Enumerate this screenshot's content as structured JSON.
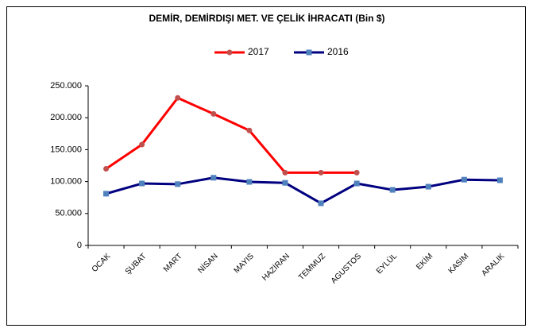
{
  "chart_data": {
    "type": "line",
    "title": "DEMİR, DEMİRDIŞI MET. VE ÇELİK İHRACATI (Bin $)",
    "categories": [
      "OCAK",
      "ŞUBAT",
      "MART",
      "NİSAN",
      "MAYIS",
      "HAZİRAN",
      "TEMMUZ",
      "AGUSTOS",
      "EYLÜL",
      "EKİM",
      "KASIM",
      "ARALIK"
    ],
    "series": [
      {
        "name": "2017",
        "color": "#ff0000",
        "marker_color": "#c0504d",
        "marker": "circle",
        "values": [
          120000,
          158000,
          231000,
          206000,
          180000,
          114000,
          114000,
          114000,
          null,
          null,
          null,
          null
        ]
      },
      {
        "name": "2016",
        "color": "#000080",
        "marker_color": "#4f81bd",
        "marker": "square",
        "values": [
          81000,
          97000,
          96000,
          106000,
          99500,
          98000,
          66000,
          97000,
          87000,
          92000,
          103000,
          102000
        ]
      }
    ],
    "ylim": [
      0,
      250000
    ],
    "yticks": [
      0,
      {
        "value": 50000,
        "label": "50.000"
      },
      {
        "value": 100000,
        "label": "100.000"
      },
      {
        "value": 150000,
        "label": "150.000"
      },
      {
        "value": 200000,
        "label": "200.000"
      },
      {
        "value": 250000,
        "label": "250.000"
      }
    ],
    "grid": false,
    "legend": "top"
  }
}
